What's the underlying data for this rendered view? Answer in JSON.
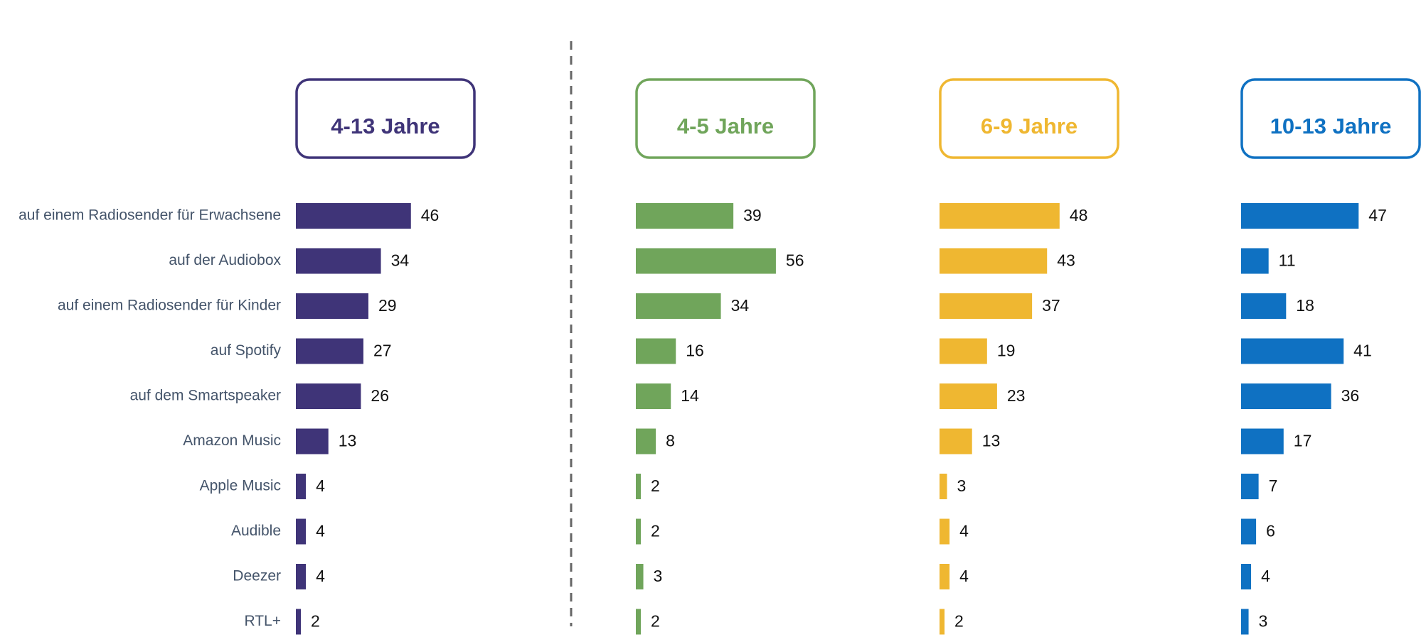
{
  "chart_data": {
    "type": "bar",
    "categories": [
      "auf einem Radiosender für Erwachsene",
      "auf der Audiobox",
      "auf einem Radiosender für Kinder",
      "auf Spotify",
      "auf dem Smartspeaker",
      "Amazon Music",
      "Apple Music",
      "Audible",
      "Deezer",
      "RTL+"
    ],
    "series": [
      {
        "name": "4-13 Jahre",
        "color": "#3f3478",
        "values": [
          46,
          34,
          29,
          27,
          26,
          13,
          4,
          4,
          4,
          2
        ]
      },
      {
        "name": "4-5 Jahre",
        "color": "#70a55b",
        "values": [
          39,
          56,
          34,
          16,
          14,
          8,
          2,
          2,
          3,
          2
        ]
      },
      {
        "name": "6-9 Jahre",
        "color": "#efb731",
        "values": [
          48,
          43,
          37,
          19,
          23,
          13,
          3,
          4,
          4,
          2
        ]
      },
      {
        "name": "10-13 Jahre",
        "color": "#0f71c2",
        "values": [
          47,
          11,
          18,
          41,
          36,
          17,
          7,
          6,
          4,
          3
        ]
      }
    ],
    "xlim": [
      0,
      60
    ]
  }
}
